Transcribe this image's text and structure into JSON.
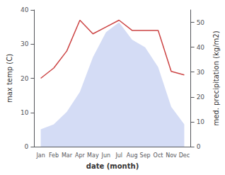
{
  "chart_data": {
    "type": "line",
    "categories": [
      "Jan",
      "Feb",
      "Mar",
      "Apr",
      "May",
      "Jun",
      "Jul",
      "Aug",
      "Sep",
      "Oct",
      "Nov",
      "Dec"
    ],
    "xlabel": "date (month)",
    "ylabel": "max temp (C)",
    "y2label": "med. precipitation (kg/m2)",
    "series": [
      {
        "type": "area",
        "axis": "y2",
        "color": "#b8c4ee",
        "values": [
          7,
          9,
          14,
          22,
          36,
          46,
          50,
          43,
          40,
          32,
          16,
          9
        ]
      },
      {
        "type": "line",
        "color": "#cc4444",
        "values": [
          20,
          23,
          28,
          37,
          33,
          35,
          37,
          34,
          34,
          34,
          22,
          21
        ]
      }
    ],
    "ylim": [
      0,
      40
    ],
    "yticks": [
      0,
      10,
      20,
      30,
      40
    ],
    "y2lim": [
      0,
      55
    ],
    "y2ticks": [
      0,
      10,
      20,
      30,
      40,
      50
    ],
    "grid": false
  }
}
